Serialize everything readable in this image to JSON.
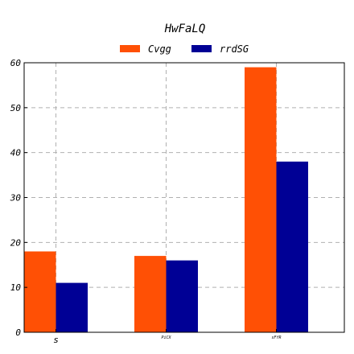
{
  "chart_data": {
    "type": "bar",
    "title": "HwFaLQ",
    "xlabel": "",
    "ylabel": "",
    "categories": [
      "s",
      "PiCX",
      "sFfR"
    ],
    "series": [
      {
        "name": "Cvgg",
        "values": [
          18,
          17,
          59
        ],
        "color": "#ff5005"
      },
      {
        "name": "rrdSG",
        "values": [
          11,
          16,
          38
        ],
        "color": "#000095"
      }
    ],
    "ylim": [
      0,
      60
    ],
    "yticks": [
      0,
      10,
      20,
      30,
      40,
      50,
      60
    ],
    "grid": true,
    "legend_position": "top-center"
  }
}
